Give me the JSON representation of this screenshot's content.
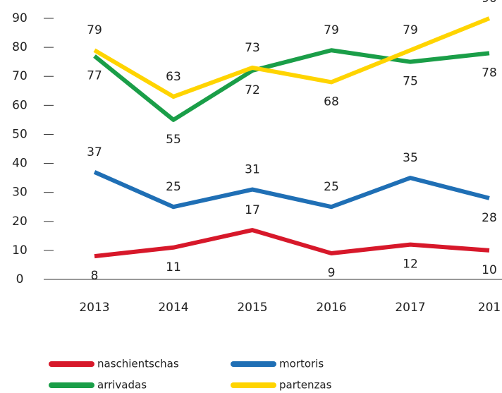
{
  "chart_data": {
    "type": "line",
    "categories": [
      "2013",
      "2014",
      "2015",
      "2016",
      "2017",
      "201"
    ],
    "series": [
      {
        "name": "naschientschas",
        "color": "#d7182a",
        "values": [
          8,
          11,
          17,
          9,
          12,
          10
        ]
      },
      {
        "name": "mortoris",
        "color": "#1f6fb5",
        "values": [
          37,
          25,
          31,
          25,
          35,
          28
        ]
      },
      {
        "name": "arrivadas",
        "color": "#1a9e48",
        "values": [
          77,
          55,
          72,
          79,
          75,
          78
        ]
      },
      {
        "name": "partenzas",
        "color": "#ffd400",
        "values": [
          79,
          63,
          73,
          68,
          79,
          90
        ]
      }
    ],
    "ylim": [
      0,
      90
    ],
    "yticks": [
      0,
      10,
      20,
      30,
      40,
      50,
      60,
      70,
      80,
      90
    ]
  }
}
